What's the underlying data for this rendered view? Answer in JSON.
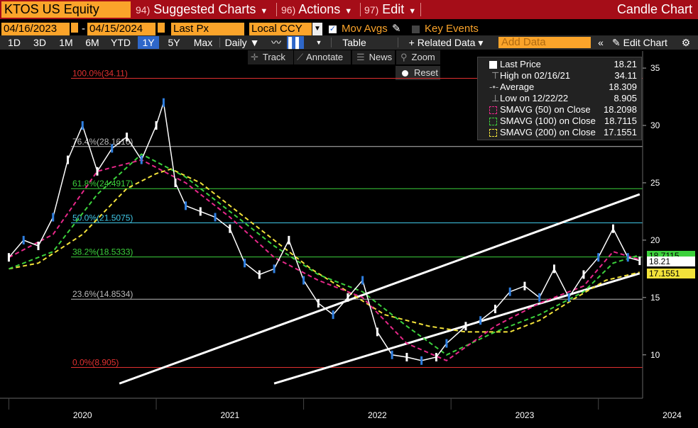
{
  "header": {
    "ticker": "KTOS US Equity",
    "menus": [
      {
        "num": "94)",
        "label": "Suggested Charts"
      },
      {
        "num": "96)",
        "label": "Actions"
      },
      {
        "num": "97)",
        "label": "Edit"
      }
    ],
    "chart_name": "Candle Chart"
  },
  "settings": {
    "start_date": "04/16/2023",
    "dash": "-",
    "end_date": "04/15/2024",
    "field": "Last Px",
    "currency": "Local CCY",
    "mov_avgs": "Mov Avgs",
    "key_events": "Key Events"
  },
  "toolbar": {
    "ranges": [
      "1D",
      "3D",
      "1M",
      "6M",
      "YTD",
      "1Y",
      "5Y",
      "Max"
    ],
    "selected_range": "1Y",
    "frequency": "Daily ▼",
    "table": "Table",
    "related": "+ Related Data ▾",
    "add_data_placeholder": "Add Data",
    "edit_chart": "Edit Chart"
  },
  "tools": {
    "track": "Track",
    "annotate": "Annotate",
    "news": "News",
    "zoom": "Zoom",
    "reset": "Reset"
  },
  "legend": [
    {
      "label": "Last Price",
      "value": "18.21",
      "color": "#ffffff"
    },
    {
      "label": "High on 02/16/21",
      "value": "34.11",
      "color": "#bbbbbb"
    },
    {
      "label": "Average",
      "value": "18.309",
      "color": "#bbbbbb"
    },
    {
      "label": "Low on 12/22/22",
      "value": "8.905",
      "color": "#bbbbbb"
    },
    {
      "label": "SMAVG (50)  on Close",
      "value": "18.2098",
      "color": "#e8288a"
    },
    {
      "label": "SMAVG (100)  on Close",
      "value": "18.7115",
      "color": "#3cd13c"
    },
    {
      "label": "SMAVG (200)  on Close",
      "value": "17.1551",
      "color": "#f2e23a"
    }
  ],
  "price_tags": [
    {
      "text": "18.7115",
      "bg": "#3cd13c",
      "fg": "#000000"
    },
    {
      "text": "18.21",
      "bg": "#ffffff",
      "fg": "#000000"
    },
    {
      "text": "17.1551",
      "bg": "#f2e23a",
      "fg": "#000000"
    }
  ],
  "chart_data": {
    "type": "line",
    "title": "",
    "ylim": [
      7,
      36
    ],
    "yticks": [
      10,
      15,
      20,
      25,
      30,
      35
    ],
    "xticks": [
      2020,
      2021,
      2022,
      2023,
      2024
    ],
    "fib_levels": [
      {
        "label": "100.0%(34.11)",
        "value": 34.11,
        "color": "#e03030"
      },
      {
        "label": "76.4%(28.1616)",
        "value": 28.1616,
        "color": "#bbbbbb"
      },
      {
        "label": "61.8%(24.4917)",
        "value": 24.4917,
        "color": "#3cd13c"
      },
      {
        "label": "50.0%(21.5075)",
        "value": 21.5075,
        "color": "#40c8e8"
      },
      {
        "label": "38.2%(18.5333)",
        "value": 18.5333,
        "color": "#3cd13c"
      },
      {
        "label": "23.6%(14.8534)",
        "value": 14.8534,
        "color": "#bbbbbb"
      },
      {
        "label": "0.0%(8.905)",
        "value": 8.905,
        "color": "#e03030"
      }
    ],
    "series": [
      {
        "name": "Last Price",
        "color": "#ffffff",
        "x": [
          2020.0,
          2020.1,
          2020.2,
          2020.3,
          2020.4,
          2020.5,
          2020.6,
          2020.7,
          2020.8,
          2020.9,
          2021.0,
          2021.05,
          2021.13,
          2021.2,
          2021.3,
          2021.4,
          2021.5,
          2021.6,
          2021.7,
          2021.8,
          2021.9,
          2022.0,
          2022.1,
          2022.2,
          2022.3,
          2022.4,
          2022.5,
          2022.6,
          2022.7,
          2022.8,
          2022.9,
          2022.97,
          2023.1,
          2023.2,
          2023.3,
          2023.4,
          2023.5,
          2023.6,
          2023.7,
          2023.8,
          2023.9,
          2024.0,
          2024.1,
          2024.2,
          2024.28
        ],
        "y": [
          18.5,
          20,
          19.5,
          22,
          27,
          30,
          26,
          28,
          29,
          27,
          30,
          32,
          25,
          23,
          22.5,
          22,
          21,
          18,
          17,
          17.5,
          20,
          16.5,
          14.5,
          13.5,
          15,
          16.5,
          12,
          10,
          9.8,
          9.5,
          9.8,
          11,
          12.5,
          13,
          14,
          15.5,
          16,
          15,
          17.5,
          15,
          17,
          18.5,
          21,
          18.5,
          18.2
        ]
      },
      {
        "name": "SMAVG (50)",
        "color": "#e8288a",
        "x": [
          2020.0,
          2020.3,
          2020.6,
          2020.9,
          2021.2,
          2021.5,
          2021.8,
          2022.1,
          2022.4,
          2022.7,
          2022.97,
          2023.3,
          2023.6,
          2023.9,
          2024.1,
          2024.28
        ],
        "y": [
          18.5,
          20.5,
          26,
          27,
          25,
          22,
          18.5,
          16.5,
          15,
          11,
          9.5,
          12.5,
          14.5,
          16,
          19,
          18.3
        ]
      },
      {
        "name": "SMAVG (100)",
        "color": "#3cd13c",
        "x": [
          2020.0,
          2020.3,
          2020.6,
          2020.9,
          2021.2,
          2021.5,
          2021.8,
          2022.1,
          2022.4,
          2022.7,
          2022.97,
          2023.3,
          2023.6,
          2023.9,
          2024.1,
          2024.28
        ],
        "y": [
          17.5,
          19,
          24,
          27.5,
          25.5,
          22.5,
          19.5,
          17,
          15.5,
          12.5,
          10,
          12,
          13.5,
          15.5,
          18,
          18.7
        ]
      },
      {
        "name": "SMAVG (200)",
        "color": "#f2e23a",
        "x": [
          2020.0,
          2020.2,
          2020.5,
          2020.8,
          2021.0,
          2021.1,
          2021.3,
          2021.55,
          2021.8,
          2022.05,
          2022.3,
          2022.55,
          2022.85,
          2023.1,
          2023.4,
          2023.6,
          2023.85,
          2024.05,
          2024.28
        ],
        "y": [
          17.5,
          18,
          20.5,
          24.5,
          25.8,
          26.2,
          25,
          22.5,
          20,
          17.5,
          15.5,
          13.5,
          12.5,
          12,
          12,
          13,
          15,
          16.5,
          17.2
        ]
      }
    ],
    "trendlines": [
      {
        "x": [
          2020.75,
          2024.28
        ],
        "y": [
          7.5,
          24.0
        ],
        "color": "#ffffff"
      },
      {
        "x": [
          2021.8,
          2024.28
        ],
        "y": [
          7.5,
          17.1
        ],
        "color": "#ffffff"
      }
    ]
  }
}
